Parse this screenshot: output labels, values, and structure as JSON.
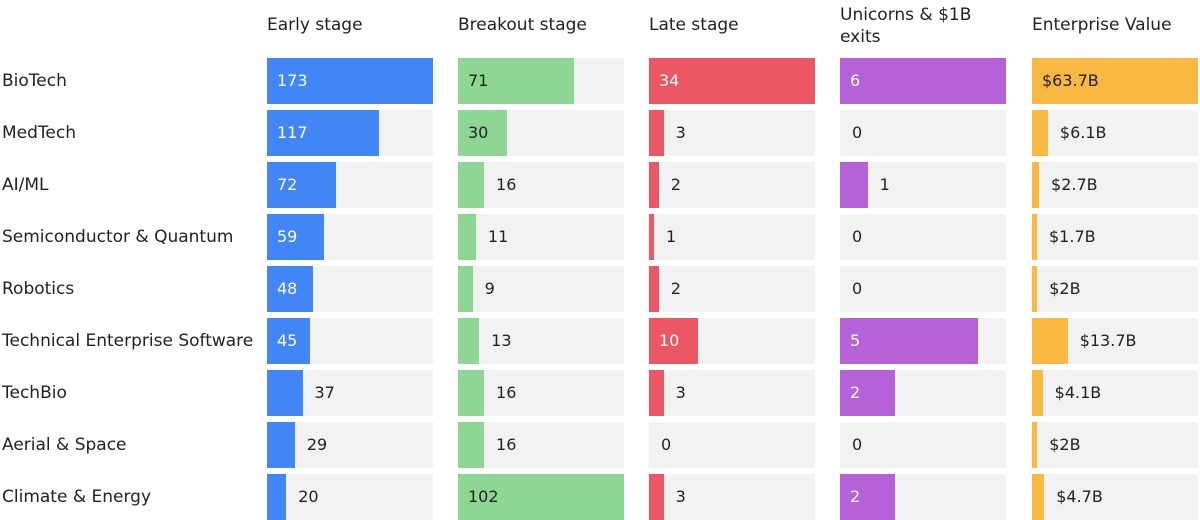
{
  "chart_data": {
    "type": "bar",
    "title": "",
    "categories": [
      "BioTech",
      "MedTech",
      "AI/ML",
      "Semiconductor & Quantum",
      "Robotics",
      "Technical Enterprise Software",
      "TechBio",
      "Aerial & Space",
      "Climate & Energy"
    ],
    "series": [
      {
        "name": "Early stage",
        "color": "#4285f4",
        "text_inside": "#ffffff",
        "values": [
          173,
          117,
          72,
          59,
          48,
          45,
          37,
          29,
          20
        ],
        "labels": [
          "173",
          "117",
          "72",
          "59",
          "48",
          "45",
          "37",
          "29",
          "20"
        ]
      },
      {
        "name": "Breakout stage",
        "color": "#8dd694",
        "text_inside": "#222222",
        "values": [
          71,
          30,
          16,
          11,
          9,
          13,
          16,
          16,
          102
        ],
        "labels": [
          "71",
          "30",
          "16",
          "11",
          "9",
          "13",
          "16",
          "16",
          "102"
        ]
      },
      {
        "name": "Late stage",
        "color": "#ec5766",
        "text_inside": "#ffffff",
        "values": [
          34,
          3,
          2,
          1,
          2,
          10,
          3,
          0,
          3
        ],
        "labels": [
          "34",
          "3",
          "2",
          "1",
          "2",
          "10",
          "3",
          "0",
          "3"
        ]
      },
      {
        "name": "Unicorns & $1B exits",
        "color": "#b562d8",
        "text_inside": "#ffffff",
        "values": [
          6,
          0,
          1,
          0,
          0,
          5,
          2,
          0,
          2
        ],
        "labels": [
          "6",
          "0",
          "1",
          "0",
          "0",
          "5",
          "2",
          "0",
          "2"
        ]
      },
      {
        "name": "Enterprise Value",
        "color": "#f8b842",
        "text_inside": "#222222",
        "values": [
          63.7,
          6.1,
          2.7,
          1.7,
          2,
          13.7,
          4.1,
          2,
          4.7
        ],
        "labels": [
          "$63.7B",
          "$6.1B",
          "$2.7B",
          "$1.7B",
          "$2B",
          "$13.7B",
          "$4.1B",
          "$2B",
          "$4.7B"
        ]
      }
    ]
  }
}
